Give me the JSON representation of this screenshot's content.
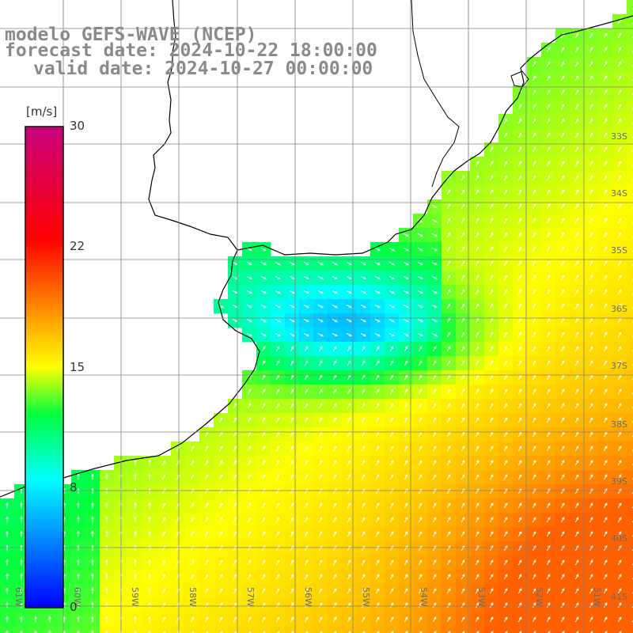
{
  "title": {
    "line1": "modelo GEFS-WAVE (NCEP)",
    "line2": "forecast date: 2024-10-22 18:00:00",
    "line3": "valid date: 2024-10-27 00:00:00"
  },
  "colorbar": {
    "unit": "[m/s]",
    "ticks": [
      {
        "value": 30,
        "label": "30"
      },
      {
        "value": 22,
        "label": "22"
      },
      {
        "value": 15,
        "label": "15"
      },
      {
        "value": 8,
        "label": "8"
      },
      {
        "value": 0,
        "label": "0"
      }
    ],
    "stops": [
      {
        "v": 0,
        "color": "#0000ff"
      },
      {
        "v": 4,
        "color": "#0080ff"
      },
      {
        "v": 8,
        "color": "#00ffff"
      },
      {
        "v": 12,
        "color": "#00ff40"
      },
      {
        "v": 15,
        "color": "#ffff00"
      },
      {
        "v": 19,
        "color": "#ff8000"
      },
      {
        "v": 23,
        "color": "#ff0000"
      },
      {
        "v": 30,
        "color": "#c8007f"
      }
    ]
  },
  "lat_labels": [
    "33S",
    "34S",
    "35S",
    "36S",
    "37S",
    "38S",
    "39S",
    "40S",
    "41S"
  ],
  "lon_labels": [
    "61W",
    "60W",
    "59W",
    "58W",
    "57W",
    "56W",
    "55W",
    "54W",
    "53W",
    "52W",
    "51W"
  ],
  "colors": {
    "land": "#ffffff",
    "coast": "#000000",
    "grid": "#808080",
    "arrow": "#ffffff",
    "title_text": "#8a8a8a"
  }
}
